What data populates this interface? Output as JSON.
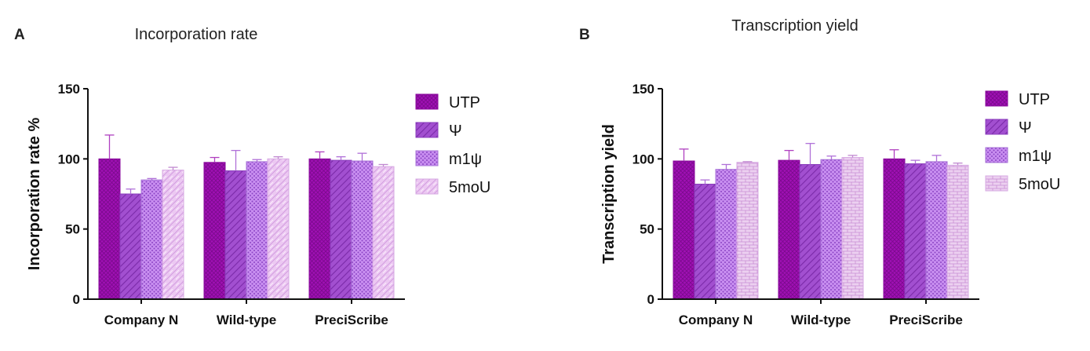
{
  "chart_data": [
    {
      "type": "bar",
      "panel": "A",
      "title": "Incorporation rate",
      "xlabel": "",
      "ylabel": "Incorporation rate %",
      "ylim": [
        0,
        150
      ],
      "yticks": [
        0,
        50,
        100,
        150
      ],
      "categories": [
        "Company N",
        "Wild-type",
        "PreciScribe"
      ],
      "legend_position": "right",
      "series": [
        {
          "name": "UTP",
          "values": [
            100,
            97.5,
            100
          ],
          "errors": [
            17,
            3.5,
            5
          ]
        },
        {
          "name": "Ψ",
          "values": [
            75,
            91.5,
            99
          ],
          "errors": [
            3.5,
            14.5,
            2.5
          ]
        },
        {
          "name": "m1ψ",
          "values": [
            85,
            98,
            98.5
          ],
          "errors": [
            1,
            1.5,
            5.5
          ]
        },
        {
          "name": "5moU",
          "values": [
            92,
            100,
            94.5
          ],
          "errors": [
            2,
            1.5,
            1.5
          ]
        }
      ]
    },
    {
      "type": "bar",
      "panel": "B",
      "title": "Transcription yield",
      "xlabel": "",
      "ylabel": "Transcription yield",
      "ylim": [
        0,
        150
      ],
      "yticks": [
        0,
        50,
        100,
        150
      ],
      "categories": [
        "Company N",
        "Wild-type",
        "PreciScribe"
      ],
      "legend_position": "right",
      "series": [
        {
          "name": "UTP",
          "values": [
            98.5,
            99,
            100
          ],
          "errors": [
            8.5,
            7,
            6.5
          ]
        },
        {
          "name": "Ψ",
          "values": [
            82,
            96,
            96.5
          ],
          "errors": [
            3,
            15,
            2.5
          ]
        },
        {
          "name": "m1ψ",
          "values": [
            92.5,
            99.5,
            98
          ],
          "errors": [
            3.5,
            2.5,
            4.5
          ]
        },
        {
          "name": "5moU",
          "values": [
            97.5,
            101,
            95.5
          ],
          "errors": [
            0.5,
            1.5,
            1.5
          ]
        }
      ]
    }
  ]
}
